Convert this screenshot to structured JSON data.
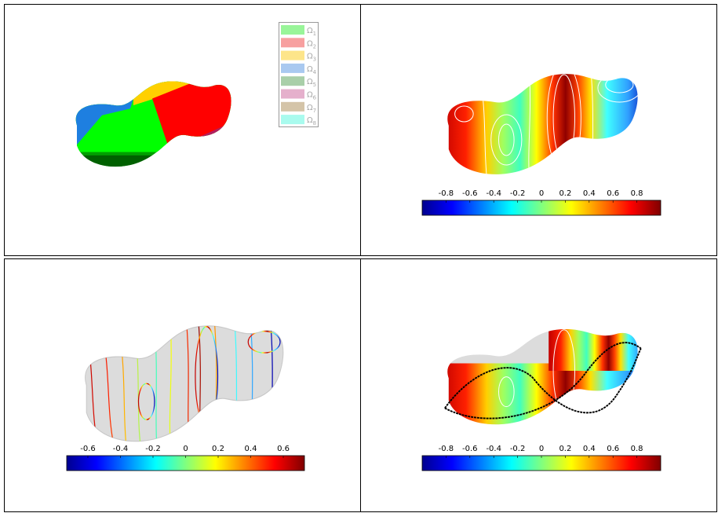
{
  "panels": [
    {
      "legend": [
        {
          "symbol": "Ω",
          "subscript": "1",
          "color": "#99f599"
        },
        {
          "symbol": "Ω",
          "subscript": "2",
          "color": "#f7a0a0"
        },
        {
          "symbol": "Ω",
          "subscript": "3",
          "color": "#fde58a"
        },
        {
          "symbol": "Ω",
          "subscript": "4",
          "color": "#a9c9f0"
        },
        {
          "symbol": "Ω",
          "subscript": "5",
          "color": "#a9cfa9"
        },
        {
          "symbol": "Ω",
          "subscript": "6",
          "color": "#e5b0cc"
        },
        {
          "symbol": "Ω",
          "subscript": "7",
          "color": "#d4c4a8"
        },
        {
          "symbol": "Ω",
          "subscript": "8",
          "color": "#a9fbee"
        }
      ]
    },
    {
      "colorbar": {
        "lim": [
          -1,
          1
        ],
        "ticks": [
          -0.8,
          -0.6,
          -0.4,
          -0.2,
          0,
          0.2,
          0.4,
          0.6,
          0.8
        ]
      }
    },
    {
      "colorbar": {
        "lim": [
          -0.73,
          0.73
        ],
        "ticks": [
          -0.6,
          -0.4,
          -0.2,
          0,
          0.2,
          0.4,
          0.6
        ]
      }
    },
    {
      "colorbar": {
        "lim": [
          -1,
          1
        ],
        "ticks": [
          -0.8,
          -0.6,
          -0.4,
          -0.2,
          0,
          0.2,
          0.4,
          0.6,
          0.8
        ]
      }
    }
  ]
}
